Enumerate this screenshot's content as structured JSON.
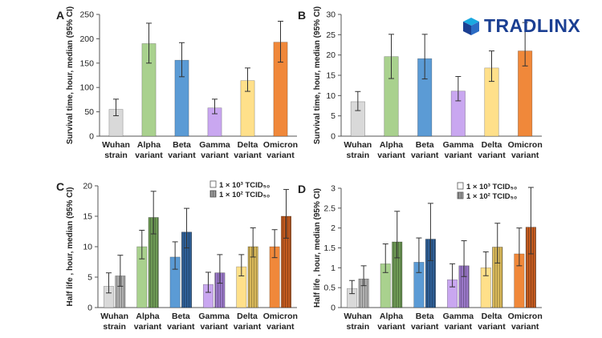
{
  "brand": {
    "name_part1": "TRADLINX",
    "name_part2": "",
    "primary": "#1b3f92",
    "accent": "#1aa9e0"
  },
  "categories": [
    [
      "Wuhan",
      "strain"
    ],
    [
      "Alpha",
      "variant"
    ],
    [
      "Beta",
      "variant"
    ],
    [
      "Gamma",
      "variant"
    ],
    [
      "Delta",
      "variant"
    ],
    [
      "Omicron",
      "variant"
    ]
  ],
  "colors": {
    "solid": [
      "#d9d9d9",
      "#a9d18e",
      "#5b9bd5",
      "#c9a7f0",
      "#ffe08a",
      "#f0883a"
    ],
    "hatched": [
      "#b0b0b0",
      "#6e9a55",
      "#2f5f96",
      "#9a78c8",
      "#d8b85a",
      "#c15a1f"
    ]
  },
  "chart_data": [
    {
      "panel": "A",
      "type": "bar",
      "ylabel": "Survival time, hour, median (95% CI)",
      "ylim": [
        0,
        250
      ],
      "yticks": [
        0,
        50,
        100,
        150,
        200,
        250
      ],
      "series": [
        {
          "values": [
            55,
            190,
            156,
            58,
            114,
            193
          ],
          "err_low": [
            42,
            150,
            122,
            46,
            92,
            152
          ],
          "err_high": [
            76,
            232,
            192,
            76,
            140,
            236
          ]
        }
      ],
      "legend": []
    },
    {
      "panel": "B",
      "type": "bar",
      "ylabel": "Survival time, hour, median (95% CI)",
      "ylim": [
        0,
        30
      ],
      "yticks": [
        0,
        5,
        10,
        15,
        20,
        25,
        30
      ],
      "series": [
        {
          "values": [
            8.5,
            19.6,
            19.1,
            11.1,
            16.8,
            21.0
          ],
          "err_low": [
            6.3,
            14.2,
            14.1,
            8.7,
            13.5,
            17.3
          ],
          "err_high": [
            11.0,
            25.1,
            25.1,
            14.7,
            21.0,
            28.0
          ]
        }
      ],
      "legend": []
    },
    {
      "panel": "C",
      "type": "bar",
      "ylabel": "Half life , hour, median (95% CI)",
      "ylim": [
        0,
        20
      ],
      "yticks": [
        0,
        5,
        10,
        15,
        20
      ],
      "series": [
        {
          "name": "1 × 10³ TCID₅₀",
          "values": [
            3.5,
            10.0,
            8.3,
            3.8,
            6.7,
            10.0
          ],
          "err_low": [
            2.4,
            8.0,
            6.3,
            2.5,
            5.2,
            8.2
          ],
          "err_high": [
            5.7,
            12.7,
            10.8,
            5.8,
            8.7,
            12.8
          ]
        },
        {
          "name": "1 × 10² TCID₅₀",
          "values": [
            5.2,
            14.8,
            12.4,
            5.7,
            10.0,
            15.0
          ],
          "err_low": [
            3.5,
            12.1,
            9.8,
            4.0,
            8.3,
            11.4
          ],
          "err_high": [
            8.6,
            19.1,
            16.3,
            8.7,
            13.1,
            19.4
          ]
        }
      ],
      "legend": [
        "□ 1 × 10³ TCID₅₀",
        "▥ 1 × 10² TCID₅₀"
      ]
    },
    {
      "panel": "D",
      "type": "bar",
      "ylabel": "Half life , hour, median (95% CI)",
      "ylim": [
        0,
        3
      ],
      "yticks": [
        0,
        0.5,
        1,
        1.5,
        2,
        2.5,
        3
      ],
      "series": [
        {
          "name": "1 × 10³ TCID₅₀",
          "values": [
            0.48,
            1.1,
            1.14,
            0.7,
            1.0,
            1.35
          ],
          "err_low": [
            0.35,
            0.88,
            0.88,
            0.52,
            0.8,
            1.05
          ],
          "err_high": [
            0.68,
            1.6,
            1.75,
            1.1,
            1.4,
            2.0
          ]
        },
        {
          "name": "1 × 10² TCID₅₀",
          "values": [
            0.72,
            1.65,
            1.72,
            1.05,
            1.52,
            2.02
          ],
          "err_low": [
            0.55,
            1.25,
            1.18,
            0.78,
            1.12,
            1.35
          ],
          "err_high": [
            1.05,
            2.42,
            2.62,
            1.68,
            2.12,
            3.02
          ]
        }
      ],
      "legend": [
        "□ 1 × 10³ TCID₅₀",
        "▥ 1 × 10² TCID₅₀"
      ]
    }
  ]
}
